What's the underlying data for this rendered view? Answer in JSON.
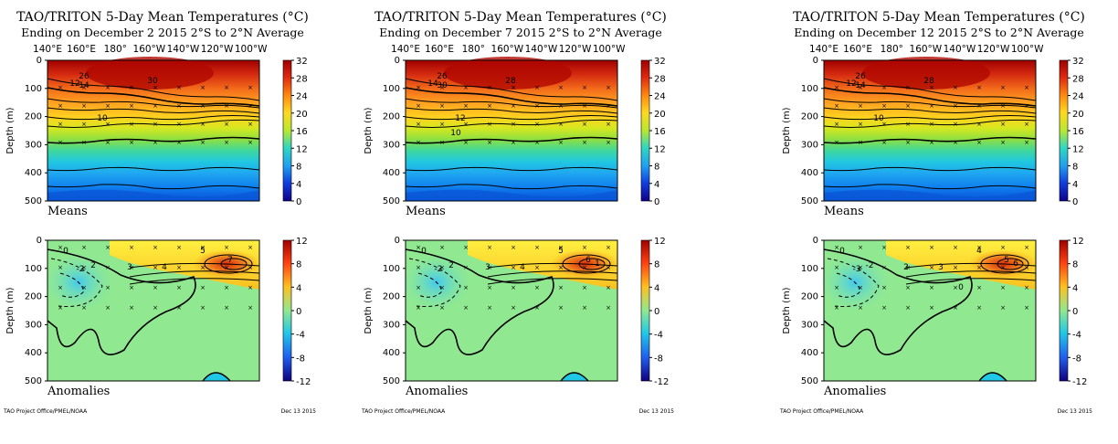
{
  "figure": {
    "section_means": "Means",
    "section_anomalies": "Anomalies",
    "credit": "TAO Project Office/PMEL/NOAA",
    "plot_date": "Dec 13 2015",
    "depth_axis_label": "Depth (m)"
  },
  "chart_data": [
    {
      "type": "heatmap",
      "title": "TAO/TRITON 5-Day Mean Temperatures (°C)",
      "subtitle": "Ending on December 2 2015   2°S to 2°N Average",
      "x_tick_labels": [
        "140°E",
        "160°E",
        "180°",
        "160°W",
        "140°W",
        "120°W",
        "100°W"
      ],
      "y_tick_labels": [
        "0",
        "100",
        "200",
        "300",
        "400",
        "500"
      ],
      "xlim": [
        140,
        265
      ],
      "ylim": [
        0,
        500
      ],
      "means": {
        "colorbar_ticks": [
          32,
          28,
          24,
          20,
          16,
          12,
          8,
          4,
          0
        ],
        "contour_labels": [
          "30",
          "26",
          "14",
          "12",
          "10"
        ]
      },
      "anomalies": {
        "colorbar_ticks": [
          12,
          8,
          4,
          0,
          -4,
          -8,
          -12
        ],
        "contour_labels": [
          "0",
          "-2",
          "2",
          "3",
          "4",
          "5",
          "7"
        ]
      }
    },
    {
      "type": "heatmap",
      "title": "TAO/TRITON 5-Day Mean Temperatures (°C)",
      "subtitle": "Ending on December 7 2015   2°S to 2°N Average",
      "x_tick_labels": [
        "140°E",
        "160°E",
        "180°",
        "160°W",
        "140°W",
        "120°W",
        "100°W"
      ],
      "y_tick_labels": [
        "0",
        "100",
        "200",
        "300",
        "400",
        "500"
      ],
      "xlim": [
        140,
        265
      ],
      "ylim": [
        0,
        500
      ],
      "means": {
        "colorbar_ticks": [
          32,
          28,
          24,
          20,
          16,
          12,
          8,
          4,
          0
        ],
        "contour_labels": [
          "28",
          "26",
          "30",
          "14",
          "12",
          "10"
        ]
      },
      "anomalies": {
        "colorbar_ticks": [
          12,
          8,
          4,
          0,
          -4,
          -8,
          -12
        ],
        "contour_labels": [
          "0",
          "-2",
          "2",
          "3",
          "4",
          "5",
          "6",
          "1"
        ]
      }
    },
    {
      "type": "heatmap",
      "title": "TAO/TRITON 5-Day Mean Temperatures (°C)",
      "subtitle": "Ending on December 12 2015   2°S to 2°N Average",
      "x_tick_labels": [
        "140°E",
        "160°E",
        "180°",
        "160°W",
        "140°W",
        "120°W",
        "100°W"
      ],
      "y_tick_labels": [
        "0",
        "100",
        "200",
        "300",
        "400",
        "500"
      ],
      "xlim": [
        140,
        265
      ],
      "ylim": [
        0,
        500
      ],
      "means": {
        "colorbar_ticks": [
          32,
          28,
          24,
          20,
          16,
          12,
          8,
          4,
          0
        ],
        "contour_labels": [
          "28",
          "26",
          "14",
          "12",
          "10"
        ]
      },
      "anomalies": {
        "colorbar_ticks": [
          12,
          8,
          4,
          0,
          -4,
          -8,
          -12
        ],
        "contour_labels": [
          "0",
          "-3",
          "-2",
          "2",
          "3",
          "4",
          "5",
          "6",
          "0"
        ]
      }
    }
  ]
}
